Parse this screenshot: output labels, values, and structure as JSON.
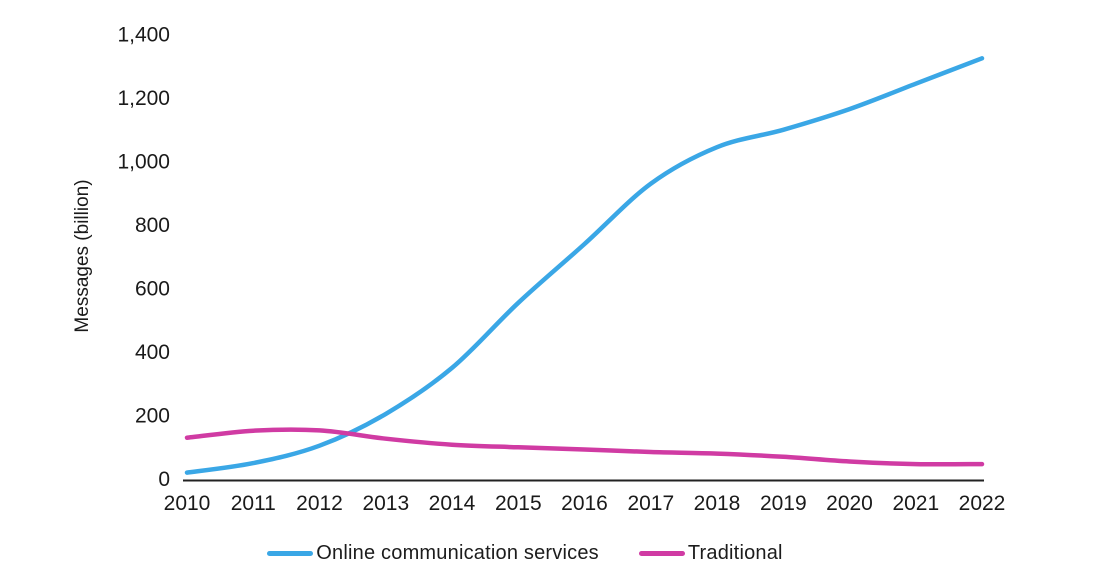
{
  "chart_data": {
    "type": "line",
    "title": "",
    "xlabel": "",
    "ylabel": "Messages (billion)",
    "x": [
      2010,
      2011,
      2012,
      2013,
      2014,
      2015,
      2016,
      2017,
      2018,
      2019,
      2020,
      2021,
      2022
    ],
    "x_labels": [
      "2010",
      "2011",
      "2012",
      "2013",
      "2014",
      "2015",
      "2016",
      "2017",
      "2018",
      "2019",
      "2020",
      "2021",
      "2022"
    ],
    "series": [
      {
        "name": "Online communication services",
        "color": "#3aa7e6",
        "values": [
          20,
          50,
          105,
          205,
          350,
          555,
          740,
          930,
          1045,
          1100,
          1165,
          1245,
          1325
        ]
      },
      {
        "name": "Traditional",
        "color": "#d03ba3",
        "values": [
          130,
          152,
          153,
          127,
          108,
          100,
          93,
          85,
          80,
          70,
          55,
          47,
          47
        ]
      }
    ],
    "ylim": [
      0,
      1400
    ],
    "yticks": [
      0,
      200,
      400,
      600,
      800,
      1000,
      1200,
      1400
    ],
    "ytick_labels": [
      "0",
      "200",
      "400",
      "600",
      "800",
      "1,000",
      "1,200",
      "1,400"
    ],
    "grid": false,
    "legend_position": "bottom",
    "axis_color": "#222222",
    "text_color": "#1a1a1a"
  }
}
